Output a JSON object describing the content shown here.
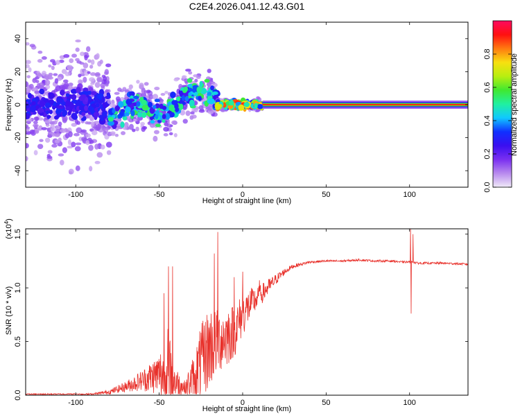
{
  "title": "C2E4.2026.041.12.43.G01",
  "colors": {
    "background": "#ffffff",
    "snr_line": "#e8302a",
    "axis": "#000000"
  },
  "chart_data": [
    {
      "type": "heatmap",
      "name": "spectrogram",
      "title": "C2E4.2026.041.12.43.G01",
      "xlabel": "Height of straight line (km)",
      "ylabel": "Frequency (Hz)",
      "xlim": [
        -130,
        135
      ],
      "ylim": [
        -50,
        50
      ],
      "xticks": [
        -100,
        -50,
        0,
        50,
        100
      ],
      "yticks": [
        -40,
        -20,
        0,
        20,
        40
      ],
      "colorbar": {
        "label": "Normalized spectral amplitude",
        "range": [
          0,
          1
        ],
        "ticks": [
          0.0,
          0.2,
          0.4,
          0.6,
          0.8
        ],
        "colormap": [
          "#f0eaf8",
          "#b88aee",
          "#7a2ff0",
          "#3a0ff0",
          "#1030ff",
          "#10c8ff",
          "#20f0a0",
          "#40e830",
          "#b8ee10",
          "#f8e010",
          "#ff7a10",
          "#ff1010",
          "#ff0a60"
        ]
      },
      "regions": [
        {
          "description": "noisy scattered",
          "x": [
            -130,
            -80
          ],
          "spread_hz": 48,
          "core_spread_hz": 12
        },
        {
          "description": "diffusing",
          "x": [
            -80,
            -15
          ],
          "spread_hz": 20,
          "core_spread_hz": 10
        },
        {
          "description": "converging",
          "x": [
            -15,
            12
          ],
          "spread_hz": 5,
          "core_spread_hz": 3
        },
        {
          "description": "stable tone",
          "x": [
            12,
            135
          ],
          "spread_hz": 2.5,
          "core_spread_hz": 1
        }
      ]
    },
    {
      "type": "line",
      "name": "snr",
      "xlabel": "Height of straight line (km)",
      "ylabel": "SNR (10 * v/v)",
      "scale_label": "(x10",
      "scale_exponent": "4",
      "xlim": [
        -130,
        135
      ],
      "ylim": [
        0,
        1.55
      ],
      "xticks": [
        -100,
        -50,
        0,
        50,
        100
      ],
      "yticks": [
        0.0,
        0.5,
        1.0,
        1.5
      ],
      "yticklabels": [
        "0.0",
        "0.5",
        "1.0",
        "1.5"
      ],
      "envelope": {
        "x": [
          -130,
          -90,
          -80,
          -70,
          -60,
          -50,
          -45,
          -40,
          -35,
          -30,
          -25,
          -20,
          -15,
          -10,
          -5,
          0,
          5,
          10,
          15,
          20,
          25,
          30,
          35,
          40,
          50,
          60,
          70,
          80,
          90,
          95,
          100,
          102,
          105,
          110,
          120,
          135
        ],
        "mean": [
          0.01,
          0.01,
          0.03,
          0.08,
          0.14,
          0.2,
          0.2,
          0.12,
          0.07,
          0.15,
          0.3,
          0.45,
          0.5,
          0.55,
          0.6,
          0.75,
          0.85,
          0.92,
          1.0,
          1.08,
          1.15,
          1.2,
          1.22,
          1.24,
          1.25,
          1.25,
          1.26,
          1.25,
          1.25,
          1.24,
          1.24,
          1.24,
          1.23,
          1.23,
          1.23,
          1.22
        ],
        "noise": [
          0.005,
          0.008,
          0.02,
          0.05,
          0.1,
          0.2,
          0.45,
          0.15,
          0.06,
          0.2,
          0.35,
          0.4,
          0.3,
          0.3,
          0.25,
          0.2,
          0.15,
          0.1,
          0.08,
          0.05,
          0.03,
          0.02,
          0.015,
          0.012,
          0.01,
          0.01,
          0.01,
          0.01,
          0.01,
          0.01,
          0.01,
          0.01,
          0.01,
          0.01,
          0.01,
          0.01
        ]
      },
      "spikes": [
        {
          "x": -44.5,
          "y": 1.2
        },
        {
          "x": -42,
          "y": 1.2
        },
        {
          "x": -47,
          "y": 0.95
        },
        {
          "x": -15,
          "y": 1.52
        },
        {
          "x": -17,
          "y": 1.32
        },
        {
          "x": -5,
          "y": 1.1
        },
        {
          "x": 0,
          "y": 1.15
        },
        {
          "x": 10,
          "y": 1.07
        },
        {
          "x": 100.5,
          "y": 1.55
        },
        {
          "x": 101,
          "y": 0.76
        },
        {
          "x": 102,
          "y": 1.5
        }
      ]
    }
  ]
}
